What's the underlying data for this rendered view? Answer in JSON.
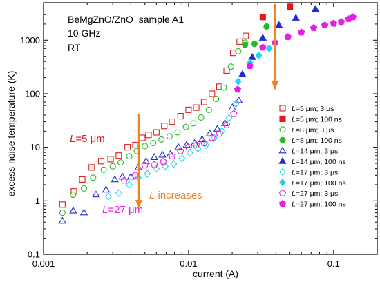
{
  "chart_data": {
    "type": "scatter",
    "title": "",
    "xlabel": "current (A)",
    "ylabel": "excess noise temperature (K)",
    "xscale": "log",
    "yscale": "log",
    "xlim": [
      0.001,
      0.2
    ],
    "ylim": [
      0.1,
      5000
    ],
    "x_ticks": [
      0.001,
      0.01,
      0.1
    ],
    "x_tick_labels": [
      "0.001",
      "0.01",
      "0.1"
    ],
    "y_ticks": [
      0.1,
      1,
      10,
      100,
      1000
    ],
    "y_tick_labels": [
      "0.1",
      "1",
      "10",
      "100",
      "1000"
    ],
    "grid": false,
    "legend_position": "right",
    "notes": [
      "BeMgZnO/ZnO  sample A1",
      "10 GHz",
      "RT"
    ],
    "annotations": {
      "l5": {
        "prefix": "L",
        "text": "=5 μm",
        "color": "#e31a1c"
      },
      "l27": {
        "prefix": "L",
        "text": "=27 μm",
        "color": "#e61ee6"
      },
      "increases": {
        "prefix": "L",
        "text": " increases",
        "color": "#f58220"
      }
    },
    "series": [
      {
        "name": "L=5 μm; 3 μs",
        "color": "#e31a1c",
        "marker": "square",
        "filled": false,
        "x": [
          0.00135,
          0.00162,
          0.00185,
          0.00215,
          0.0025,
          0.0029,
          0.0033,
          0.0038,
          0.0043,
          0.0048,
          0.0053,
          0.006,
          0.0068,
          0.0077,
          0.0088,
          0.01,
          0.0113,
          0.0128,
          0.0145,
          0.0163,
          0.0183,
          0.0203,
          0.0225,
          0.0248
        ],
        "y": [
          0.85,
          1.5,
          2.5,
          4.2,
          5.5,
          6.0,
          7.0,
          10,
          11,
          15,
          17,
          19,
          25,
          30,
          38,
          50,
          55,
          70,
          100,
          135,
          270,
          580,
          940,
          1200
        ]
      },
      {
        "name": "L=5 μm; 100 ns",
        "color": "#e31a1c",
        "marker": "square",
        "filled": true,
        "x": [
          0.0325,
          0.05
        ],
        "y": [
          2700,
          4200
        ]
      },
      {
        "name": "L=8 μm; 3 μs",
        "color": "#22bb22",
        "marker": "circle",
        "filled": false,
        "x": [
          0.00135,
          0.0016,
          0.0019,
          0.0022,
          0.0026,
          0.003,
          0.0034,
          0.0039,
          0.0044,
          0.005,
          0.0057,
          0.0065,
          0.0074,
          0.0084,
          0.0096,
          0.0108,
          0.0122,
          0.0138,
          0.0155,
          0.0175,
          0.0196,
          0.022,
          0.0246
        ],
        "y": [
          0.6,
          1.3,
          1.7,
          2.7,
          3.8,
          4.4,
          5.2,
          6.8,
          8.5,
          10.5,
          12,
          14,
          16,
          19,
          24,
          28,
          36,
          50,
          80,
          130,
          320,
          620,
          900
        ]
      },
      {
        "name": "L=8 μm; 100 ns",
        "color": "#22bb22",
        "marker": "circle",
        "filled": true,
        "x": [
          0.0245,
          0.0285,
          0.0345
        ],
        "y": [
          820,
          850,
          1800
        ]
      },
      {
        "name": "L=14 μm; 3 μs",
        "color": "#1c2cd6",
        "marker": "triangle",
        "filled": false,
        "x": [
          0.00135,
          0.0016,
          0.0019,
          0.0023,
          0.0027,
          0.0031,
          0.0035,
          0.004,
          0.0045,
          0.0051,
          0.0058,
          0.0066,
          0.0075,
          0.0085,
          0.0097,
          0.011,
          0.0124,
          0.014,
          0.0158,
          0.0178,
          0.02,
          0.0222
        ],
        "y": [
          0.42,
          0.65,
          0.6,
          1.3,
          1.6,
          2.5,
          2.8,
          2.8,
          4.2,
          5.5,
          6.5,
          7.2,
          7.5,
          10,
          11,
          12,
          14,
          18,
          22,
          28,
          55,
          75
        ]
      },
      {
        "name": "L=14 μm; 100 ns",
        "color": "#1c2cd6",
        "marker": "triangle",
        "filled": true,
        "x": [
          0.0235,
          0.0275,
          0.0325,
          0.042,
          0.055,
          0.075
        ],
        "y": [
          230,
          480,
          1100,
          1900,
          2600,
          3800
        ]
      },
      {
        "name": "L=17 μm; 3 μs",
        "color": "#22d3f0",
        "marker": "diamond",
        "filled": false,
        "x": [
          0.0028,
          0.0033,
          0.0039,
          0.0045,
          0.0052,
          0.006,
          0.0069,
          0.0079,
          0.009,
          0.0102,
          0.0116,
          0.0132,
          0.015,
          0.017,
          0.019,
          0.0212
        ],
        "y": [
          1.2,
          1.4,
          2.0,
          2.7,
          3.2,
          4.0,
          4.4,
          4.9,
          6.2,
          7.8,
          9.5,
          11,
          15,
          20,
          35,
          65
        ]
      },
      {
        "name": "L=17 μm; 100 ns",
        "color": "#22d3f0",
        "marker": "diamond",
        "filled": true,
        "x": [
          0.022,
          0.0265,
          0.0305,
          0.036
        ],
        "y": [
          170,
          380,
          520,
          700
        ]
      },
      {
        "name": "L=27 μm; 3 μs",
        "color": "#e61ee6",
        "marker": "pentagon",
        "filled": false,
        "x": [
          0.0036,
          0.0043,
          0.005,
          0.0058,
          0.0067,
          0.0077,
          0.0088,
          0.01,
          0.0113,
          0.0128,
          0.0145,
          0.0163,
          0.0183,
          0.0205
        ],
        "y": [
          2.4,
          3.0,
          4.6,
          4.7,
          5.4,
          6.8,
          8.5,
          10,
          11,
          12,
          15,
          18,
          26,
          42
        ]
      },
      {
        "name": "L=27 μm; 100 ns",
        "color": "#e61ee6",
        "marker": "pentagon",
        "filled": true,
        "x": [
          0.0218,
          0.0265,
          0.0325,
          0.0395,
          0.0485,
          0.06,
          0.073,
          0.087,
          0.1,
          0.113,
          0.127,
          0.136
        ],
        "y": [
          120,
          330,
          730,
          900,
          1150,
          1400,
          1700,
          1900,
          2050,
          2200,
          2500,
          2700
        ]
      }
    ]
  }
}
